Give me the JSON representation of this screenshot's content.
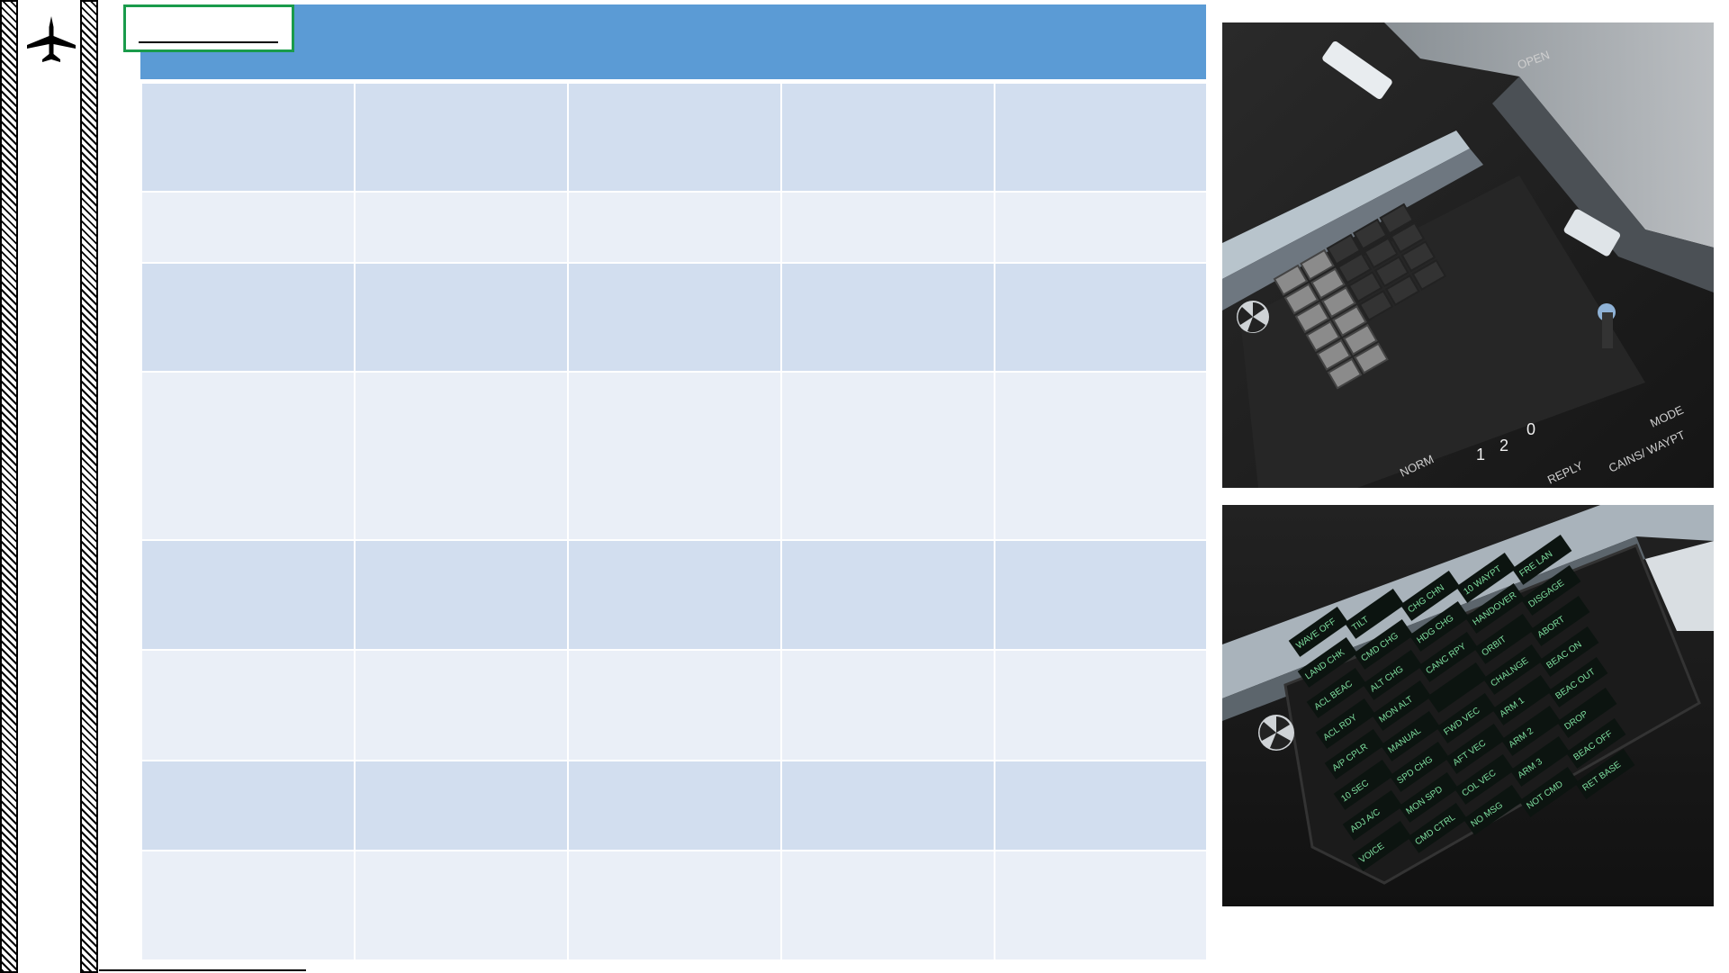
{
  "header": {
    "title": ""
  },
  "table": {
    "rows": [
      {
        "style": "dark",
        "height": 121,
        "cells": [
          "",
          "",
          "",
          "",
          ""
        ]
      },
      {
        "style": "light",
        "height": 79,
        "cells": [
          "",
          "",
          "",
          "",
          ""
        ]
      },
      {
        "style": "dark",
        "height": 121,
        "cells": [
          "",
          "",
          "",
          "",
          ""
        ]
      },
      {
        "style": "light",
        "height": 187,
        "cells": [
          "",
          "",
          "",
          "",
          ""
        ]
      },
      {
        "style": "dark",
        "height": 122,
        "cells": [
          "",
          "",
          "",
          "",
          ""
        ]
      },
      {
        "style": "light",
        "height": 123,
        "cells": [
          "",
          "",
          "",
          "",
          ""
        ]
      },
      {
        "style": "dark",
        "height": 100,
        "cells": [
          "",
          "",
          "",
          "",
          ""
        ]
      },
      {
        "style": "light",
        "height": 122,
        "cells": [
          "",
          "",
          "",
          "",
          ""
        ]
      }
    ]
  },
  "photos": {
    "top": {
      "labels": [
        "OPEN",
        "NORM",
        "1",
        "2",
        "0",
        "REPLY",
        "CAINS/ WAYPT",
        "MODE"
      ]
    },
    "bottom": {
      "columns": [
        [
          "WAVE OFF",
          "LAND CHK",
          "ACL BEAC",
          "ACL RDY",
          "A/P CPLR",
          "10 SEC",
          "ADJ A/C",
          "VOICE"
        ],
        [
          "TILT",
          "CMD CHG",
          "ALT CHG",
          "MON ALT",
          "MANUAL",
          "SPD CHG",
          "MON SPD",
          "CMD CTRL"
        ],
        [
          "CHG CHN",
          "HDG CHG",
          "CANC RPY",
          "",
          "FWD VEC",
          "AFT VEC",
          "COL VEC",
          "NO MSG"
        ],
        [
          "10 WAYPT",
          "HANDOVER",
          "ORBIT",
          "CHALNGE",
          "ARM 1",
          "ARM 2",
          "ARM 3",
          "NOT CMD"
        ],
        [
          "FRE LAN",
          "DISGAGE",
          "ABORT",
          "BEAC ON",
          "BEAC OUT",
          "DROP",
          "BEAC OFF",
          "RET BASE"
        ]
      ]
    }
  },
  "colors": {
    "header": "#5b9bd5",
    "row_dark": "#d2deef",
    "row_light": "#eaeff7",
    "tag_border": "#1a9b4b",
    "panel_text": "#7fe0a0"
  }
}
